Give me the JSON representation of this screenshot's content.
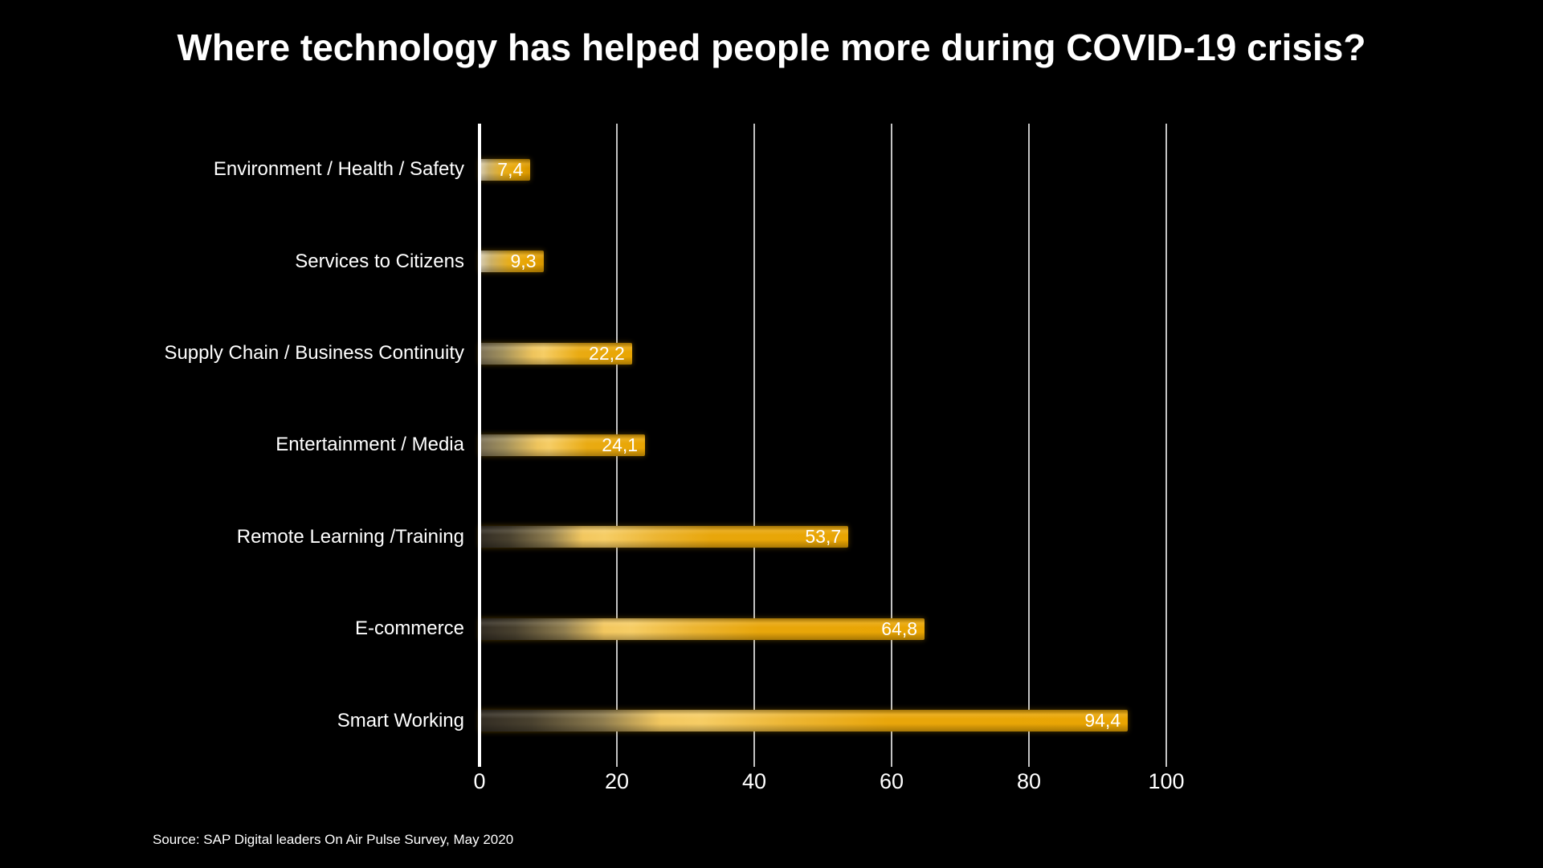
{
  "title": "Where technology has helped people more during COVID-19 crisis?",
  "source": "Source: SAP Digital leaders On Air Pulse Survey, May 2020",
  "chart_data": {
    "type": "bar",
    "orientation": "horizontal",
    "title": "Where technology has helped people more during COVID-19 crisis?",
    "categories": [
      "Environment / Health / Safety",
      "Services to Citizens",
      "Supply Chain / Business Continuity",
      "Entertainment / Media",
      "Remote Learning /Training",
      "E-commerce",
      "Smart Working"
    ],
    "values": [
      7.4,
      9.3,
      22.2,
      24.1,
      53.7,
      64.8,
      94.4
    ],
    "value_labels": [
      "7,4",
      "9,3",
      "22,2",
      "24,1",
      "53,7",
      "64,8",
      "94,4"
    ],
    "xlabel": "",
    "ylabel": "",
    "xlim": [
      0,
      100
    ],
    "x_ticks": [
      0,
      20,
      40,
      60,
      80,
      100
    ],
    "grid": true,
    "legend": false,
    "annotations": [
      "Source: SAP Digital leaders On Air Pulse Survey, May 2020"
    ],
    "colors": {
      "background": "#000000",
      "text": "#ffffff",
      "axis": "#ffffff",
      "gridline": "#c3c3c3",
      "bar_amber": "#e9a502",
      "bar_gold": "#f6cd65",
      "bar_dark_start": "#332d24",
      "bar_mid_start": "#7b7057",
      "bar_light_start": "#d6cdb6"
    }
  }
}
